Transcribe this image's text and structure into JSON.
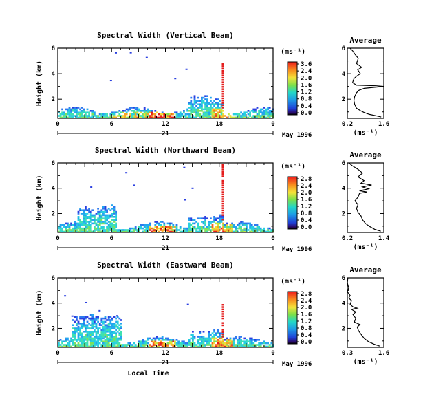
{
  "chart_data": [
    {
      "type": "heatmap",
      "title": "Spectral Width (Vertical Beam)",
      "ylabel": "Height (km)",
      "ylim": [
        0.5,
        6
      ],
      "y_ticks": [
        "2",
        "4",
        "6"
      ],
      "xlim": [
        0,
        24
      ],
      "x_ticks": [
        "0",
        "6",
        "12",
        "18",
        "0"
      ],
      "date_labels": [
        "21"
      ],
      "month_label": "May 1996",
      "colorbar_unit": "(ms⁻¹)",
      "colorbar_ticks": [
        "3.6",
        "2.4",
        "2.0",
        "1.6",
        "1.2",
        "0.8",
        "0.4",
        "0.0"
      ],
      "colorbar_range": [
        0,
        3.6
      ],
      "average": {
        "title": "Average",
        "xlabel": "(ms⁻¹)",
        "x_ticks": [
          "0.2",
          "1.6"
        ],
        "xlim": [
          0.2,
          1.6
        ],
        "ylim": [
          0.5,
          6
        ],
        "y_ticks": [
          "2",
          "4",
          "6"
        ],
        "profile": [
          [
            1.5,
            0.6
          ],
          [
            1.3,
            0.7
          ],
          [
            1.05,
            0.8
          ],
          [
            0.85,
            0.95
          ],
          [
            0.7,
            1.1
          ],
          [
            0.55,
            1.3
          ],
          [
            0.48,
            1.6
          ],
          [
            0.45,
            1.9
          ],
          [
            0.48,
            2.2
          ],
          [
            0.55,
            2.5
          ],
          [
            0.65,
            2.7
          ],
          [
            0.85,
            2.85
          ],
          [
            1.6,
            3.0
          ],
          [
            1.3,
            3.05
          ],
          [
            0.55,
            3.1
          ],
          [
            0.4,
            3.3
          ],
          [
            0.45,
            3.6
          ],
          [
            0.55,
            3.8
          ],
          [
            0.7,
            4.0
          ],
          [
            0.6,
            4.3
          ],
          [
            0.75,
            4.5
          ],
          [
            0.55,
            4.8
          ],
          [
            0.62,
            5.2
          ],
          [
            0.5,
            5.5
          ],
          [
            0.4,
            5.8
          ],
          [
            0.3,
            6.0
          ]
        ]
      }
    },
    {
      "type": "heatmap",
      "title": "Spectral Width (Northward Beam)",
      "ylabel": "Height (km)",
      "ylim": [
        0.5,
        6
      ],
      "y_ticks": [
        "2",
        "4",
        "6"
      ],
      "xlim": [
        0,
        24
      ],
      "x_ticks": [
        "0",
        "6",
        "12",
        "18",
        "0"
      ],
      "date_labels": [
        "21"
      ],
      "month_label": "May 1996",
      "colorbar_unit": "(ms⁻¹)",
      "colorbar_ticks": [
        "2.8",
        "2.4",
        "2.0",
        "1.6",
        "1.2",
        "0.8",
        "0.4",
        "0.0"
      ],
      "colorbar_range": [
        0,
        2.8
      ],
      "average": {
        "title": "Average",
        "xlabel": "(ms⁻¹)",
        "x_ticks": [
          "0.2",
          "1.4"
        ],
        "xlim": [
          0.2,
          1.4
        ],
        "ylim": [
          0.5,
          6
        ],
        "y_ticks": [
          "2",
          "4",
          "6"
        ],
        "profile": [
          [
            1.3,
            0.6
          ],
          [
            1.1,
            0.75
          ],
          [
            0.95,
            0.95
          ],
          [
            0.8,
            1.2
          ],
          [
            0.7,
            1.5
          ],
          [
            0.65,
            1.8
          ],
          [
            0.55,
            2.1
          ],
          [
            0.5,
            2.4
          ],
          [
            0.55,
            2.7
          ],
          [
            0.45,
            3.0
          ],
          [
            0.55,
            3.3
          ],
          [
            0.6,
            3.6
          ],
          [
            0.85,
            3.7
          ],
          [
            0.6,
            3.8
          ],
          [
            0.9,
            3.95
          ],
          [
            0.7,
            4.1
          ],
          [
            1.0,
            4.25
          ],
          [
            0.65,
            4.4
          ],
          [
            0.75,
            4.6
          ],
          [
            0.55,
            4.9
          ],
          [
            0.7,
            5.2
          ],
          [
            0.55,
            5.5
          ],
          [
            0.35,
            5.8
          ],
          [
            0.25,
            6.0
          ]
        ]
      }
    },
    {
      "type": "heatmap",
      "title": "Spectral Width (Eastward Beam)",
      "ylabel": "Height (km)",
      "ylim": [
        0.5,
        6
      ],
      "y_ticks": [
        "2",
        "4",
        "6"
      ],
      "xlim": [
        0,
        24
      ],
      "x_ticks": [
        "0",
        "6",
        "12",
        "18",
        "0"
      ],
      "date_labels": [
        "21"
      ],
      "month_label": "May 1996",
      "xlabel": "Local Time",
      "colorbar_unit": "(ms⁻¹)",
      "colorbar_ticks": [
        "2.8",
        "2.4",
        "2.0",
        "1.6",
        "1.2",
        "0.8",
        "0.4",
        "0.0"
      ],
      "colorbar_range": [
        0,
        2.8
      ],
      "average": {
        "title": "Average",
        "xlabel": "(ms⁻¹)",
        "x_ticks": [
          "0.3",
          "1.6"
        ],
        "xlim": [
          0.3,
          1.6
        ],
        "ylim": [
          0.5,
          6
        ],
        "y_ticks": [
          "2",
          "4",
          "6"
        ],
        "profile": [
          [
            1.45,
            0.6
          ],
          [
            1.25,
            0.75
          ],
          [
            1.05,
            0.95
          ],
          [
            0.9,
            1.2
          ],
          [
            0.8,
            1.5
          ],
          [
            0.7,
            1.8
          ],
          [
            0.65,
            2.1
          ],
          [
            0.75,
            2.3
          ],
          [
            0.55,
            2.5
          ],
          [
            0.6,
            2.8
          ],
          [
            0.5,
            3.1
          ],
          [
            0.6,
            3.3
          ],
          [
            0.45,
            3.5
          ],
          [
            0.65,
            3.6
          ],
          [
            0.5,
            3.7
          ],
          [
            0.4,
            3.9
          ],
          [
            0.45,
            4.2
          ],
          [
            0.35,
            4.4
          ],
          [
            0.4,
            4.6
          ],
          [
            0.3,
            4.9
          ],
          [
            0.35,
            5.2
          ],
          [
            0.3,
            5.6
          ],
          [
            0.32,
            6.0
          ]
        ]
      }
    }
  ]
}
